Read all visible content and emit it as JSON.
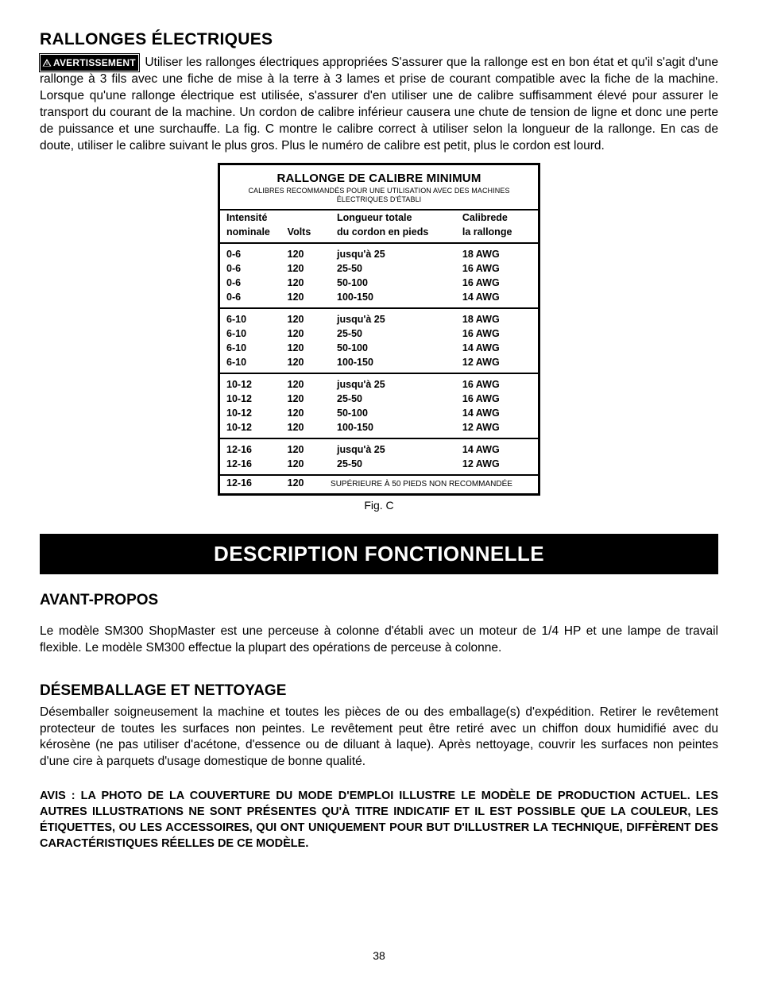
{
  "section1_title": "RALLONGES ÉLECTRIQUES",
  "warn_label": "AVERTISSEMENT",
  "section1_body": "Utiliser les rallonges électriques appropriées S'assurer que la rallonge est en bon état et qu'il s'agit d'une rallonge à 3 fils avec une fiche de mise à la terre à 3 lames et prise de courant compatible avec la fiche de la machine. Lorsque qu'une rallonge électrique est utilisée, s'assurer d'en utiliser une de calibre suffisamment élevé pour assurer le transport du courant de la machine. Un cordon de calibre inférieur causera une chute de tension de ligne et donc une perte de puissance et une surchauffe. La fig. C montre le calibre correct à utiliser selon la longueur de la rallonge. En cas de doute, utiliser le calibre suivant le plus gros. Plus le numéro de calibre est petit, plus le cordon est lourd.",
  "table": {
    "title": "RALLONGE DE CALIBRE MINIMUM",
    "subtitle": "CALIBRES RECOMMANDÉS POUR UNE UTILISATION AVEC DES MACHINES ÉLECTRIQUES D'ÉTABLI",
    "hdr": {
      "c1a": "Intensité",
      "c1b": "nominale",
      "c2": "Volts",
      "c3a": "Longueur totale",
      "c3b": "du cordon en pieds",
      "c4a": "Calibrede",
      "c4b": "la rallonge"
    },
    "groups": [
      [
        [
          "0-6",
          "120",
          "jusqu'à 25",
          "18 AWG"
        ],
        [
          "0-6",
          "120",
          "25-50",
          "16 AWG"
        ],
        [
          "0-6",
          "120",
          "50-100",
          "16 AWG"
        ],
        [
          "0-6",
          "120",
          "100-150",
          "14 AWG"
        ]
      ],
      [
        [
          "6-10",
          "120",
          "jusqu'à  25",
          "18 AWG"
        ],
        [
          "6-10",
          "120",
          "25-50",
          "16 AWG"
        ],
        [
          "6-10",
          "120",
          "50-100",
          "14 AWG"
        ],
        [
          "6-10",
          "120",
          "100-150",
          "12 AWG"
        ]
      ],
      [
        [
          "10-12",
          "120",
          "jusqu'à 25",
          "16 AWG"
        ],
        [
          "10-12",
          "120",
          "25-50",
          "16 AWG"
        ],
        [
          "10-12",
          "120",
          "50-100",
          "14 AWG"
        ],
        [
          "10-12",
          "120",
          "100-150",
          "12 AWG"
        ]
      ],
      [
        [
          "12-16",
          "120",
          "jusqu'à 25",
          "14 AWG"
        ],
        [
          "12-16",
          "120",
          "25-50",
          "12 AWG"
        ]
      ]
    ],
    "last_row": [
      "12-16",
      "120"
    ],
    "note": "SUPÉRIEURE À 50 PIEDS NON RECOMMANDÉE"
  },
  "fig_caption": "Fig. C",
  "blackbar": "DESCRIPTION FONCTIONNELLE",
  "avant_title": "AVANT-PROPOS",
  "avant_body": "Le modèle SM300 ShopMaster est une perceuse à colonne d'établi avec un moteur de 1/4 HP et une lampe de travail flexible. Le modèle SM300 effectue la plupart des opérations de perceuse à colonne.",
  "desemb_title": "DÉSEMBALLAGE ET NETTOYAGE",
  "desemb_body": "Désemballer soigneusement la machine et toutes les pièces de ou des emballage(s) d'expédition. Retirer le revêtement protecteur de toutes les surfaces non peintes. Le revêtement peut être retiré avec un chiffon doux humidifié avec du kérosène (ne pas utiliser d'acétone, d'essence ou de diluant à laque). Après nettoyage, couvrir les surfaces non peintes d'une cire à parquets d'usage domestique de bonne qualité.",
  "notice": "AVIS : LA PHOTO DE LA COUVERTURE DU MODE D'EMPLOI ILLUSTRE LE MODÈLE DE PRODUCTION ACTUEL. LES AUTRES ILLUSTRATIONS NE SONT PRÉSENTES QU'À TITRE INDICATIF ET IL EST POSSIBLE QUE LA COULEUR, LES ÉTIQUETTES, OU LES ACCESSOIRES, QUI ONT UNIQUEMENT POUR BUT D'ILLUSTRER LA TECHNIQUE, DIFFÈRENT DES CARACTÉRISTIQUES RÉELLES DE CE MODÈLE.",
  "page_number": "38"
}
